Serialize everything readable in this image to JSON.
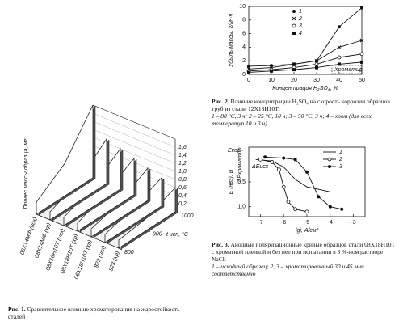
{
  "chart_data": [
    {
      "type": "ribbon3d",
      "caption_label": "Рис. 1.",
      "caption": "Сравнительное влияние хроматирования на жаростойкость сталей",
      "zlabel": "Привес массы образца, мг",
      "xlabel": "t исп, °C",
      "x": [
        800,
        900,
        1000
      ],
      "xlim": [
        800,
        1000
      ],
      "xticks": [
        800,
        900,
        1000
      ],
      "ylim": [
        0,
        1.8
      ],
      "yticks": [
        {
          "value": 0.2,
          "label": "0,2"
        },
        {
          "value": 0.4,
          "label": "0,4"
        },
        {
          "value": 0.6,
          "label": "0,6"
        },
        {
          "value": 0.8,
          "label": "0,8"
        },
        {
          "value": 1.0,
          "label": "1,0"
        },
        {
          "value": 1.2,
          "label": "1,2"
        },
        {
          "value": 1.4,
          "label": "1,4"
        },
        {
          "value": 1.6,
          "label": "1,6"
        }
      ],
      "categories": [
        "08Х14МФ (исх)",
        "08Х14МФ (хр)",
        "08Х18Н10Т (исх)",
        "08Х18Н10Т (хр)",
        "06Х18Н10Т (хр)",
        "823 (исх)",
        "823 (хр)"
      ],
      "values": [
        [
          0.3,
          0.8,
          1.8
        ],
        [
          0.2,
          0.5,
          1.1
        ],
        [
          0.2,
          0.5,
          1.0
        ],
        [
          0.2,
          0.5,
          0.9
        ],
        [
          0.2,
          0.4,
          0.8
        ],
        [
          0.2,
          0.4,
          0.7
        ],
        [
          0.2,
          0.3,
          0.6
        ]
      ],
      "color": "#222222"
    },
    {
      "type": "line",
      "caption_label": "Рис. 2.",
      "caption": "Влияние концентрации H₂SO₄ на скорость коррозии образцов труб из стали 12Х18Н10Т:",
      "caption_note": "1 – 80 °С, 3 ч; 2 – 25 °С, 10 ч; 3 – 50 °С, 3 ч; 4 – хром (для всех температур 10 и 3 ч)",
      "xlabel": "Концентрация H₂SO₄, %",
      "ylabel": "Убыль массы, г/м²·ч",
      "annotations": [
        "Хроматир"
      ],
      "x": [
        0,
        10,
        20,
        30,
        40,
        50
      ],
      "xlim": [
        0,
        50
      ],
      "xticks": [
        0,
        10,
        20,
        30,
        40,
        50
      ],
      "ylim": [
        0,
        10
      ],
      "yticks": [
        0,
        2,
        4,
        6,
        8,
        10
      ],
      "series": [
        {
          "name": "1",
          "marker": "filled-circle",
          "color": "#111111",
          "values": [
            1.2,
            1.3,
            1.5,
            2.0,
            7.0,
            9.8
          ]
        },
        {
          "name": "2",
          "marker": "cross",
          "color": "#111111",
          "values": [
            0.8,
            1.0,
            1.5,
            2.0,
            4.0,
            5.0
          ]
        },
        {
          "name": "3",
          "marker": "open-circle",
          "color": "#111111",
          "values": [
            0.5,
            0.7,
            1.0,
            1.5,
            2.5,
            3.0
          ]
        },
        {
          "name": "4",
          "marker": "filled-square",
          "color": "#111111",
          "values": [
            0.3,
            0.5,
            0.7,
            1.0,
            1.5,
            1.8
          ]
        }
      ]
    },
    {
      "type": "line",
      "caption_label": "Рис. 3.",
      "caption": "Анодные поляризационные кривые образцов стали 08Х18Н10Т с хроматной пленкой и без нее при испытании в 3 %-ном растворе NaCl:",
      "caption_note": "1 – исходный образец; 2, 3 – хроматированный 30 и 45 мин соответственно",
      "xlabel": "lgi, А/см²",
      "ylabel": "E (нвэ), В",
      "annotations": [
        "Eкор",
        "ΔEисх",
        "ΔEхроматир"
      ],
      "xlim": [
        -7.5,
        -2.5
      ],
      "xticks": [
        -7,
        -6,
        -5,
        -4,
        -3
      ],
      "ylim": [
        1.2,
        -0.2
      ],
      "yticks": [
        {
          "value": 0.5,
          "label": "0,5"
        },
        {
          "value": 1.0,
          "label": "1,0"
        }
      ],
      "series": [
        {
          "name": "1",
          "marker": "none",
          "color": "#111111",
          "x": [
            -7.2,
            -6.5,
            -6,
            -5.5,
            -5,
            -4.5,
            -4
          ],
          "values": [
            0.05,
            0.08,
            0.2,
            0.45,
            0.6,
            0.65,
            0.7
          ]
        },
        {
          "name": "2",
          "marker": "open-circle",
          "color": "#111111",
          "x": [
            -7,
            -6.5,
            -6.2,
            -6,
            -5.8,
            -5.5,
            -5
          ],
          "values": [
            0.05,
            0.1,
            0.25,
            0.6,
            0.9,
            1.05,
            1.1
          ]
        },
        {
          "name": "3",
          "marker": "filled-circle",
          "color": "#111111",
          "x": [
            -6.8,
            -6,
            -5.5,
            -5,
            -4.5,
            -4,
            -3.5
          ],
          "values": [
            0.0,
            0.02,
            0.05,
            0.3,
            0.8,
            1.0,
            1.05
          ]
        }
      ]
    }
  ]
}
